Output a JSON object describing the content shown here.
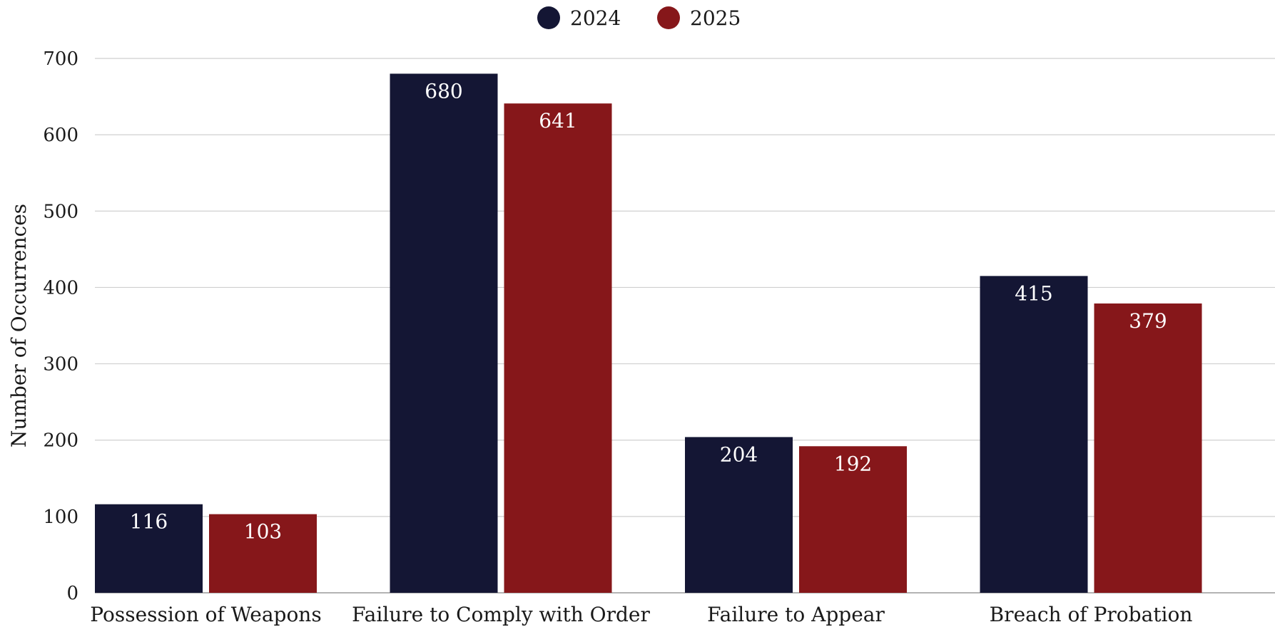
{
  "chart_data": {
    "type": "bar",
    "categories": [
      "Possession of Weapons",
      "Failure to Comply with Order",
      "Failure to Appear",
      "Breach of Probation"
    ],
    "series": [
      {
        "name": "2024",
        "values": [
          116,
          680,
          204,
          415
        ],
        "color": "#141634"
      },
      {
        "name": "2025",
        "values": [
          103,
          641,
          192,
          379
        ],
        "color": "#86171a"
      }
    ],
    "ylabel": "Number of Occurrences",
    "xlabel": "",
    "ylim": [
      0,
      700
    ],
    "yticks": [
      0,
      100,
      200,
      300,
      400,
      500,
      600,
      700
    ],
    "grid": true,
    "legend_position": "top-center",
    "data_labels_inside_top": true
  }
}
